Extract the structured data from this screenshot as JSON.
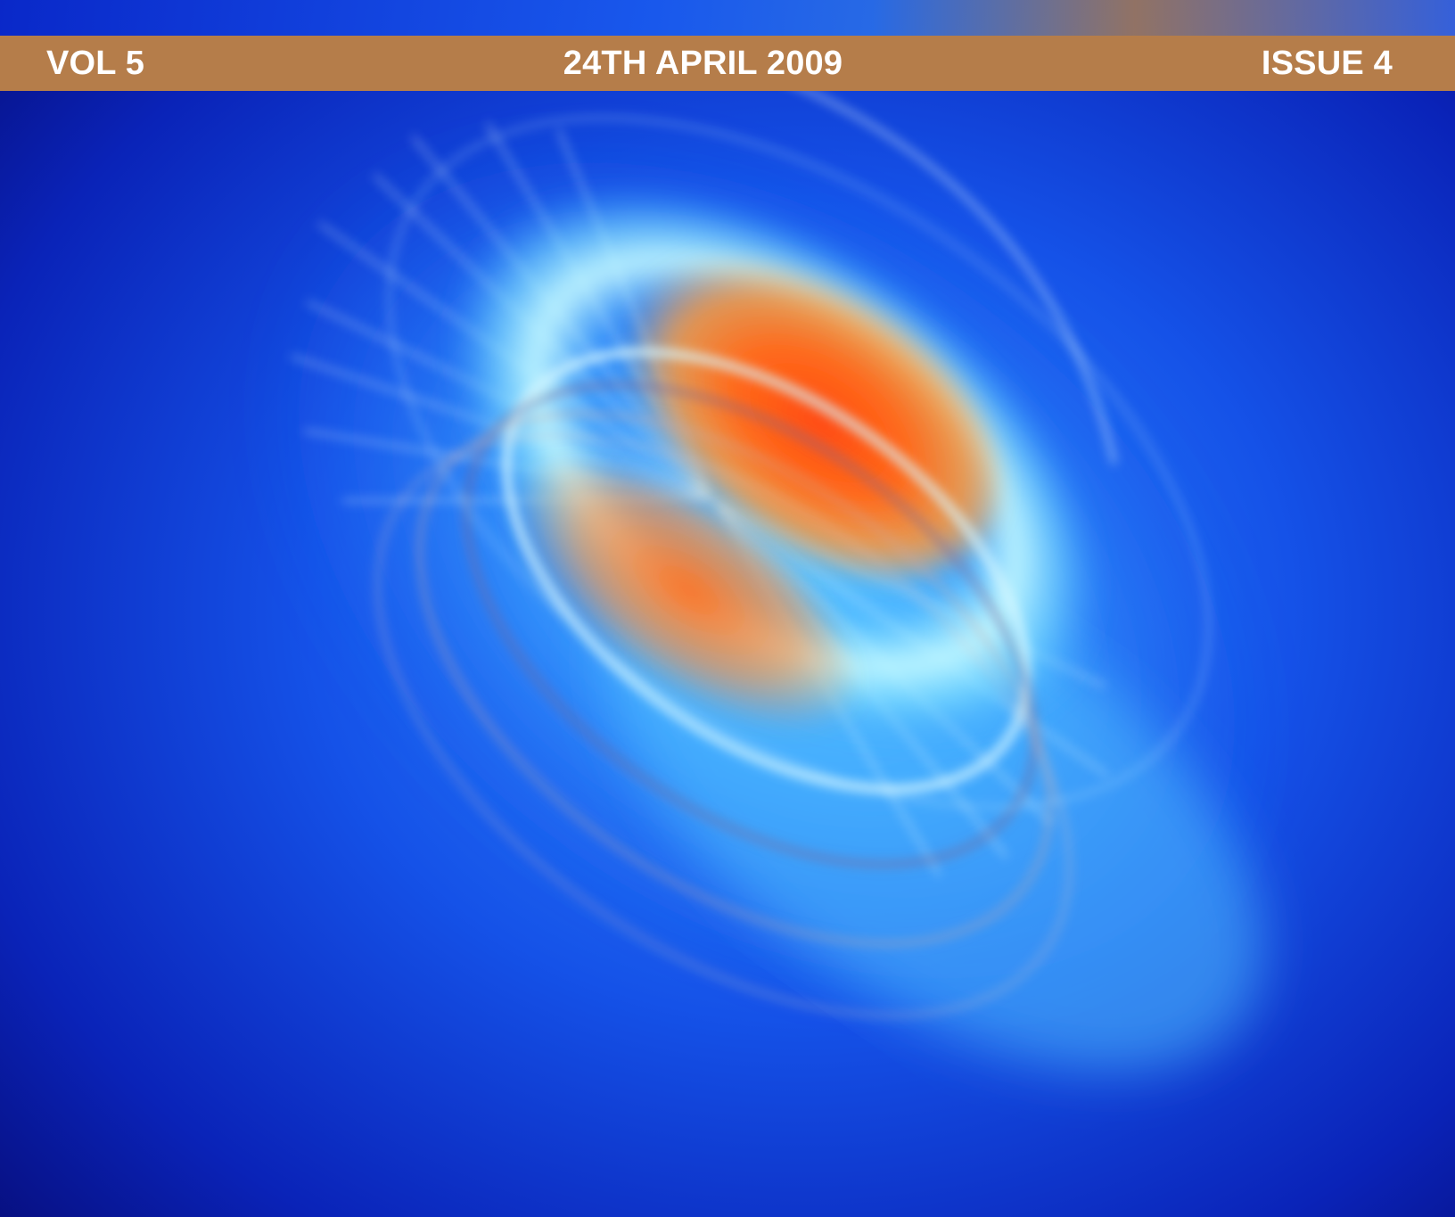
{
  "header": {
    "volume": "VOL 5",
    "date": "24TH APRIL 2009",
    "issue": "ISSUE 4"
  },
  "colors": {
    "banner": "#b57d4a",
    "banner_text": "#ffffff",
    "background_blue": "#0b1d9a"
  }
}
